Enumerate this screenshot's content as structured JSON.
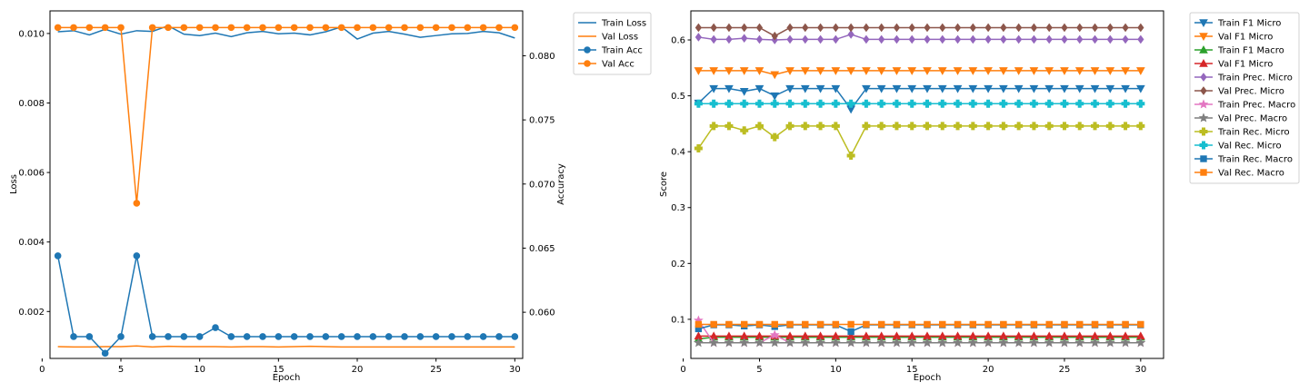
{
  "chart_data": [
    {
      "type": "line",
      "xlabel": "Epoch",
      "ylabel": "Loss",
      "y2label": "Accuracy",
      "x": [
        1,
        2,
        3,
        4,
        5,
        6,
        7,
        8,
        9,
        10,
        11,
        12,
        13,
        14,
        15,
        16,
        17,
        18,
        19,
        20,
        21,
        22,
        23,
        24,
        25,
        26,
        27,
        28,
        29,
        30
      ],
      "xlim": [
        0.5,
        30.5
      ],
      "xticks": [
        0,
        5,
        10,
        15,
        20,
        25,
        30
      ],
      "ylim": [
        0.00065,
        0.01065
      ],
      "yticks": [
        0.002,
        0.004,
        0.006,
        0.008,
        0.01
      ],
      "ytick_labels": [
        "0.002",
        "0.004",
        "0.006",
        "0.008",
        "0.010"
      ],
      "y2lim": [
        0.0564,
        0.0835
      ],
      "y2ticks": [
        0.06,
        0.065,
        0.07,
        0.075,
        0.08
      ],
      "y2tick_labels": [
        "0.060",
        "0.065",
        "0.070",
        "0.075",
        "0.080"
      ],
      "legend_position": "outside-top-right",
      "series": [
        {
          "name": "Train Loss",
          "axis": "left",
          "color": "#1f77b4",
          "marker": "none",
          "values": [
            0.01005,
            0.01008,
            0.00996,
            0.01012,
            0.00998,
            0.01008,
            0.01006,
            0.01022,
            0.00998,
            0.00994,
            0.01001,
            0.00991,
            0.01002,
            0.01006,
            0.00999,
            0.01001,
            0.00996,
            0.01005,
            0.01019,
            0.00984,
            0.01001,
            0.01006,
            0.00998,
            0.00989,
            0.00994,
            0.00999,
            0.01,
            0.01006,
            0.01002,
            0.00987
          ]
        },
        {
          "name": "Val Loss",
          "axis": "left",
          "color": "#ff7f0e",
          "marker": "none",
          "values": [
            0.00099,
            0.00098,
            0.00098,
            0.00099,
            0.00099,
            0.00101,
            0.00098,
            0.001,
            0.00099,
            0.00099,
            0.00099,
            0.00098,
            0.00099,
            0.00099,
            0.00098,
            0.00099,
            0.001,
            0.00099,
            0.00098,
            0.00098,
            0.00098,
            0.00098,
            0.00098,
            0.00098,
            0.00098,
            0.00098,
            0.00098,
            0.00098,
            0.00098,
            0.00098
          ]
        },
        {
          "name": "Train Acc",
          "axis": "right",
          "color": "#1f77b4",
          "marker": "circle",
          "values": [
            0.0644,
            0.0581,
            0.0581,
            0.0568,
            0.0581,
            0.0644,
            0.0581,
            0.0581,
            0.0581,
            0.0581,
            0.0588,
            0.0581,
            0.0581,
            0.0581,
            0.0581,
            0.0581,
            0.0581,
            0.0581,
            0.0581,
            0.0581,
            0.0581,
            0.0581,
            0.0581,
            0.0581,
            0.0581,
            0.0581,
            0.0581,
            0.0581,
            0.0581,
            0.0581
          ]
        },
        {
          "name": "Val Acc",
          "axis": "right",
          "color": "#ff7f0e",
          "marker": "circle",
          "values": [
            0.0822,
            0.0822,
            0.0822,
            0.0822,
            0.0822,
            0.0685,
            0.0822,
            0.0822,
            0.0822,
            0.0822,
            0.0822,
            0.0822,
            0.0822,
            0.0822,
            0.0822,
            0.0822,
            0.0822,
            0.0822,
            0.0822,
            0.0822,
            0.0822,
            0.0822,
            0.0822,
            0.0822,
            0.0822,
            0.0822,
            0.0822,
            0.0822,
            0.0822,
            0.0822
          ]
        }
      ]
    },
    {
      "type": "line",
      "xlabel": "Epoch",
      "ylabel": "Score",
      "x": [
        1,
        2,
        3,
        4,
        5,
        6,
        7,
        8,
        9,
        10,
        11,
        12,
        13,
        14,
        15,
        16,
        17,
        18,
        19,
        20,
        21,
        22,
        23,
        24,
        25,
        26,
        27,
        28,
        29,
        30
      ],
      "xlim": [
        0.5,
        31.5
      ],
      "xticks": [
        0,
        5,
        10,
        15,
        20,
        25,
        30
      ],
      "ylim": [
        0.03,
        0.652
      ],
      "yticks": [
        0.1,
        0.2,
        0.3,
        0.4,
        0.5,
        0.6
      ],
      "ytick_labels": [
        "0.1",
        "0.2",
        "0.3",
        "0.4",
        "0.5",
        "0.6"
      ],
      "legend_position": "outside-top-right",
      "series": [
        {
          "name": "Train F1 Micro",
          "color": "#1f77b4",
          "marker": "triangle-down",
          "values": [
            0.487,
            0.513,
            0.513,
            0.508,
            0.513,
            0.5,
            0.513,
            0.513,
            0.513,
            0.513,
            0.476,
            0.513,
            0.513,
            0.513,
            0.513,
            0.513,
            0.513,
            0.513,
            0.513,
            0.513,
            0.513,
            0.513,
            0.513,
            0.513,
            0.513,
            0.513,
            0.513,
            0.513,
            0.513,
            0.513
          ]
        },
        {
          "name": "Val F1 Micro",
          "color": "#ff7f0e",
          "marker": "triangle-down",
          "values": [
            0.545,
            0.545,
            0.545,
            0.545,
            0.545,
            0.538,
            0.545,
            0.545,
            0.545,
            0.545,
            0.545,
            0.545,
            0.545,
            0.545,
            0.545,
            0.545,
            0.545,
            0.545,
            0.545,
            0.545,
            0.545,
            0.545,
            0.545,
            0.545,
            0.545,
            0.545,
            0.545,
            0.545,
            0.545,
            0.545
          ]
        },
        {
          "name": "Train F1 Macro",
          "color": "#2ca02c",
          "marker": "triangle-up",
          "values": [
            0.065,
            0.068,
            0.068,
            0.068,
            0.068,
            0.068,
            0.068,
            0.068,
            0.068,
            0.068,
            0.068,
            0.068,
            0.068,
            0.068,
            0.068,
            0.068,
            0.068,
            0.068,
            0.068,
            0.068,
            0.068,
            0.068,
            0.068,
            0.068,
            0.068,
            0.068,
            0.068,
            0.068,
            0.068,
            0.068
          ]
        },
        {
          "name": "Val F1 Micro",
          "color": "#d62728",
          "marker": "triangle-up",
          "values": [
            0.07,
            0.07,
            0.07,
            0.07,
            0.07,
            0.07,
            0.07,
            0.07,
            0.07,
            0.07,
            0.07,
            0.07,
            0.07,
            0.07,
            0.07,
            0.07,
            0.07,
            0.07,
            0.07,
            0.07,
            0.07,
            0.07,
            0.07,
            0.07,
            0.07,
            0.07,
            0.07,
            0.07,
            0.07,
            0.07
          ]
        },
        {
          "name": "Train Prec. Micro",
          "color": "#9467bd",
          "marker": "diamond",
          "values": [
            0.605,
            0.601,
            0.601,
            0.603,
            0.601,
            0.6,
            0.601,
            0.601,
            0.601,
            0.601,
            0.61,
            0.601,
            0.601,
            0.601,
            0.601,
            0.601,
            0.601,
            0.601,
            0.601,
            0.601,
            0.601,
            0.601,
            0.601,
            0.601,
            0.601,
            0.601,
            0.601,
            0.601,
            0.601,
            0.601
          ]
        },
        {
          "name": "Val Prec. Micro",
          "color": "#8c564b",
          "marker": "diamond",
          "values": [
            0.622,
            0.622,
            0.622,
            0.622,
            0.622,
            0.607,
            0.622,
            0.622,
            0.622,
            0.622,
            0.622,
            0.622,
            0.622,
            0.622,
            0.622,
            0.622,
            0.622,
            0.622,
            0.622,
            0.622,
            0.622,
            0.622,
            0.622,
            0.622,
            0.622,
            0.622,
            0.622,
            0.622,
            0.622,
            0.622
          ]
        },
        {
          "name": "Train Prec. Macro",
          "color": "#e377c2",
          "marker": "star",
          "values": [
            0.098,
            0.058,
            0.058,
            0.058,
            0.058,
            0.072,
            0.058,
            0.058,
            0.058,
            0.058,
            0.058,
            0.058,
            0.058,
            0.058,
            0.058,
            0.058,
            0.058,
            0.058,
            0.058,
            0.058,
            0.058,
            0.058,
            0.058,
            0.058,
            0.058,
            0.058,
            0.058,
            0.058,
            0.058,
            0.058
          ]
        },
        {
          "name": "Val Prec. Macro",
          "color": "#7f7f7f",
          "marker": "star",
          "values": [
            0.058,
            0.058,
            0.058,
            0.058,
            0.058,
            0.058,
            0.058,
            0.058,
            0.058,
            0.058,
            0.058,
            0.058,
            0.058,
            0.058,
            0.058,
            0.058,
            0.058,
            0.058,
            0.058,
            0.058,
            0.058,
            0.058,
            0.058,
            0.058,
            0.058,
            0.058,
            0.058,
            0.058,
            0.058,
            0.058
          ]
        },
        {
          "name": "Train Rec. Micro",
          "color": "#bcbd22",
          "marker": "plus",
          "values": [
            0.406,
            0.446,
            0.446,
            0.438,
            0.446,
            0.426,
            0.446,
            0.446,
            0.446,
            0.446,
            0.393,
            0.446,
            0.446,
            0.446,
            0.446,
            0.446,
            0.446,
            0.446,
            0.446,
            0.446,
            0.446,
            0.446,
            0.446,
            0.446,
            0.446,
            0.446,
            0.446,
            0.446,
            0.446,
            0.446
          ]
        },
        {
          "name": "Val Rec. Micro",
          "color": "#17becf",
          "marker": "plus",
          "values": [
            0.486,
            0.486,
            0.486,
            0.486,
            0.486,
            0.486,
            0.486,
            0.486,
            0.486,
            0.486,
            0.486,
            0.486,
            0.486,
            0.486,
            0.486,
            0.486,
            0.486,
            0.486,
            0.486,
            0.486,
            0.486,
            0.486,
            0.486,
            0.486,
            0.486,
            0.486,
            0.486,
            0.486,
            0.486,
            0.486
          ]
        },
        {
          "name": "Train Rec. Macro",
          "color": "#1f77b4",
          "marker": "square",
          "values": [
            0.083,
            0.09,
            0.09,
            0.088,
            0.09,
            0.087,
            0.09,
            0.09,
            0.09,
            0.09,
            0.078,
            0.09,
            0.09,
            0.09,
            0.09,
            0.09,
            0.09,
            0.09,
            0.09,
            0.09,
            0.09,
            0.09,
            0.09,
            0.09,
            0.09,
            0.09,
            0.09,
            0.09,
            0.09,
            0.09
          ]
        },
        {
          "name": "Val Rec. Macro",
          "color": "#ff7f0e",
          "marker": "square",
          "values": [
            0.091,
            0.091,
            0.091,
            0.091,
            0.091,
            0.091,
            0.091,
            0.091,
            0.091,
            0.091,
            0.091,
            0.091,
            0.091,
            0.091,
            0.091,
            0.091,
            0.091,
            0.091,
            0.091,
            0.091,
            0.091,
            0.091,
            0.091,
            0.091,
            0.091,
            0.091,
            0.091,
            0.091,
            0.091,
            0.091
          ]
        }
      ]
    }
  ]
}
